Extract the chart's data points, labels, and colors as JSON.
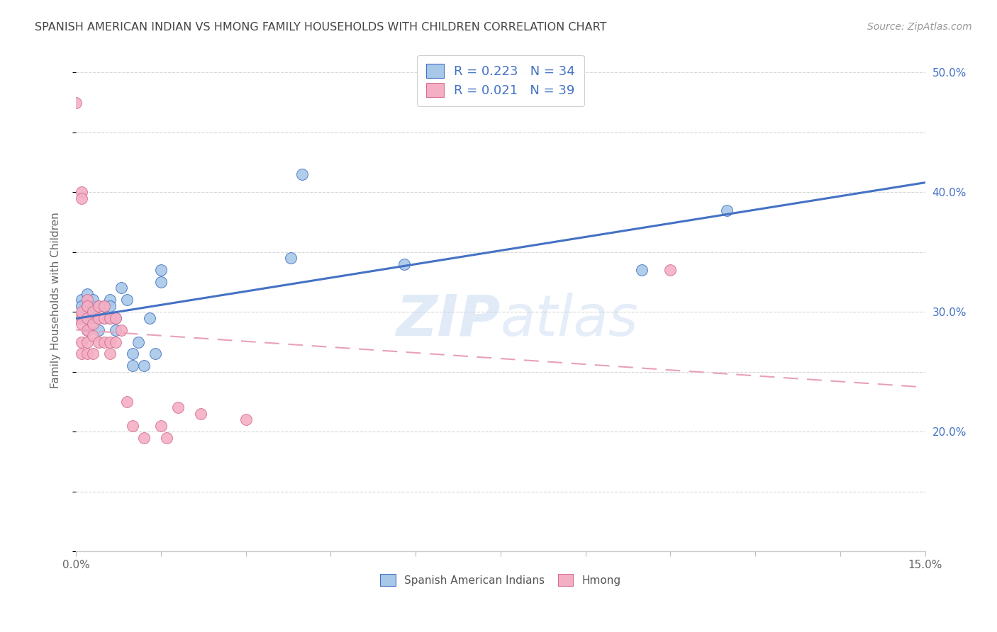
{
  "title": "SPANISH AMERICAN INDIAN VS HMONG FAMILY HOUSEHOLDS WITH CHILDREN CORRELATION CHART",
  "source": "Source: ZipAtlas.com",
  "ylabel": "Family Households with Children",
  "xlim": [
    0.0,
    0.15
  ],
  "ylim": [
    0.1,
    0.52
  ],
  "xticks": [
    0.0,
    0.015,
    0.03,
    0.045,
    0.06,
    0.075,
    0.09,
    0.105,
    0.12,
    0.135,
    0.15
  ],
  "xticklabels": [
    "0.0%",
    "",
    "",
    "",
    "",
    "",
    "",
    "",
    "",
    "",
    "15.0%"
  ],
  "yticks": [
    0.1,
    0.15,
    0.2,
    0.25,
    0.3,
    0.35,
    0.4,
    0.45,
    0.5
  ],
  "yticklabels_right": [
    "",
    "",
    "20.0%",
    "",
    "30.0%",
    "",
    "40.0%",
    "",
    "50.0%"
  ],
  "legend1_label": "Spanish American Indians",
  "legend2_label": "Hmong",
  "legend1_color": "#a8c8e8",
  "legend2_color": "#f4afc4",
  "R1": 0.223,
  "N1": 34,
  "R2": 0.021,
  "N2": 39,
  "line1_color": "#4472c4",
  "line2_color": "#e8a0b8",
  "watermark": "ZIPatlas",
  "background_color": "#ffffff",
  "grid_color": "#d8d8d8",
  "sai_x": [
    0.001,
    0.001,
    0.001,
    0.002,
    0.002,
    0.002,
    0.002,
    0.003,
    0.003,
    0.003,
    0.004,
    0.004,
    0.005,
    0.005,
    0.006,
    0.006,
    0.006,
    0.007,
    0.007,
    0.008,
    0.009,
    0.01,
    0.01,
    0.011,
    0.012,
    0.013,
    0.014,
    0.015,
    0.015,
    0.038,
    0.04,
    0.058,
    0.1,
    0.115
  ],
  "sai_y": [
    0.31,
    0.305,
    0.295,
    0.305,
    0.315,
    0.295,
    0.285,
    0.305,
    0.31,
    0.295,
    0.305,
    0.285,
    0.305,
    0.295,
    0.31,
    0.305,
    0.295,
    0.285,
    0.295,
    0.32,
    0.31,
    0.265,
    0.255,
    0.275,
    0.255,
    0.295,
    0.265,
    0.335,
    0.325,
    0.345,
    0.415,
    0.34,
    0.335,
    0.385
  ],
  "hmong_x": [
    0.0,
    0.0,
    0.001,
    0.001,
    0.001,
    0.001,
    0.001,
    0.001,
    0.002,
    0.002,
    0.002,
    0.002,
    0.002,
    0.002,
    0.003,
    0.003,
    0.003,
    0.003,
    0.004,
    0.004,
    0.004,
    0.005,
    0.005,
    0.005,
    0.006,
    0.006,
    0.006,
    0.007,
    0.007,
    0.008,
    0.009,
    0.01,
    0.012,
    0.015,
    0.016,
    0.018,
    0.022,
    0.03,
    0.105
  ],
  "hmong_y": [
    0.475,
    0.295,
    0.4,
    0.395,
    0.3,
    0.29,
    0.275,
    0.265,
    0.31,
    0.305,
    0.295,
    0.285,
    0.275,
    0.265,
    0.3,
    0.29,
    0.28,
    0.265,
    0.305,
    0.295,
    0.275,
    0.305,
    0.295,
    0.275,
    0.295,
    0.275,
    0.265,
    0.295,
    0.275,
    0.285,
    0.225,
    0.205,
    0.195,
    0.205,
    0.195,
    0.22,
    0.215,
    0.21,
    0.335
  ]
}
